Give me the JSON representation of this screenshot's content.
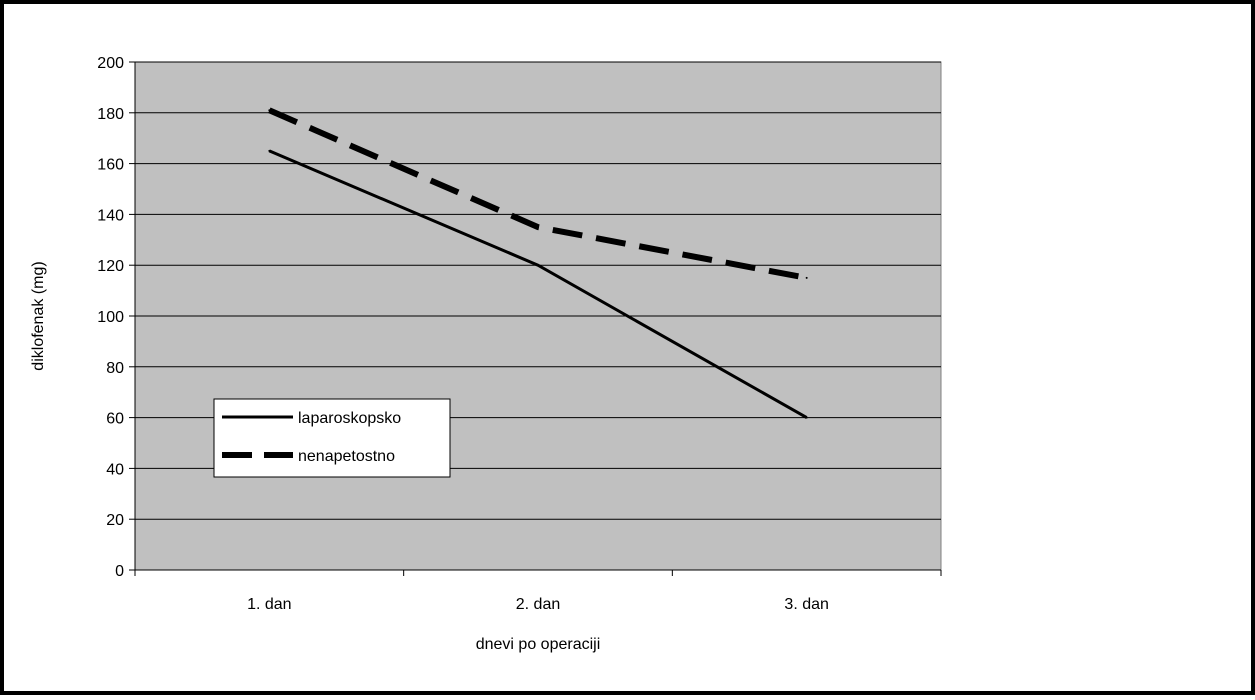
{
  "chart_data": {
    "type": "line",
    "title": "",
    "xlabel": "dnevi po operaciji",
    "ylabel": "diklofenak (mg)",
    "categories": [
      "1. dan",
      "2. dan",
      "3. dan"
    ],
    "ylim": [
      0,
      200
    ],
    "yticks": [
      "0",
      "20",
      "40",
      "60",
      "80",
      "100",
      "120",
      "140",
      "160",
      "180",
      "200"
    ],
    "grid": true,
    "legend_position": "bottom-left",
    "plot_background": "#c0c0c0",
    "series": [
      {
        "name": "laparoskopsko",
        "values": [
          165,
          120,
          60
        ],
        "style": "solid",
        "color": "#000000"
      },
      {
        "name": "nenapetostno",
        "values": [
          181,
          135,
          115
        ],
        "style": "dashed",
        "color": "#000000"
      }
    ]
  }
}
